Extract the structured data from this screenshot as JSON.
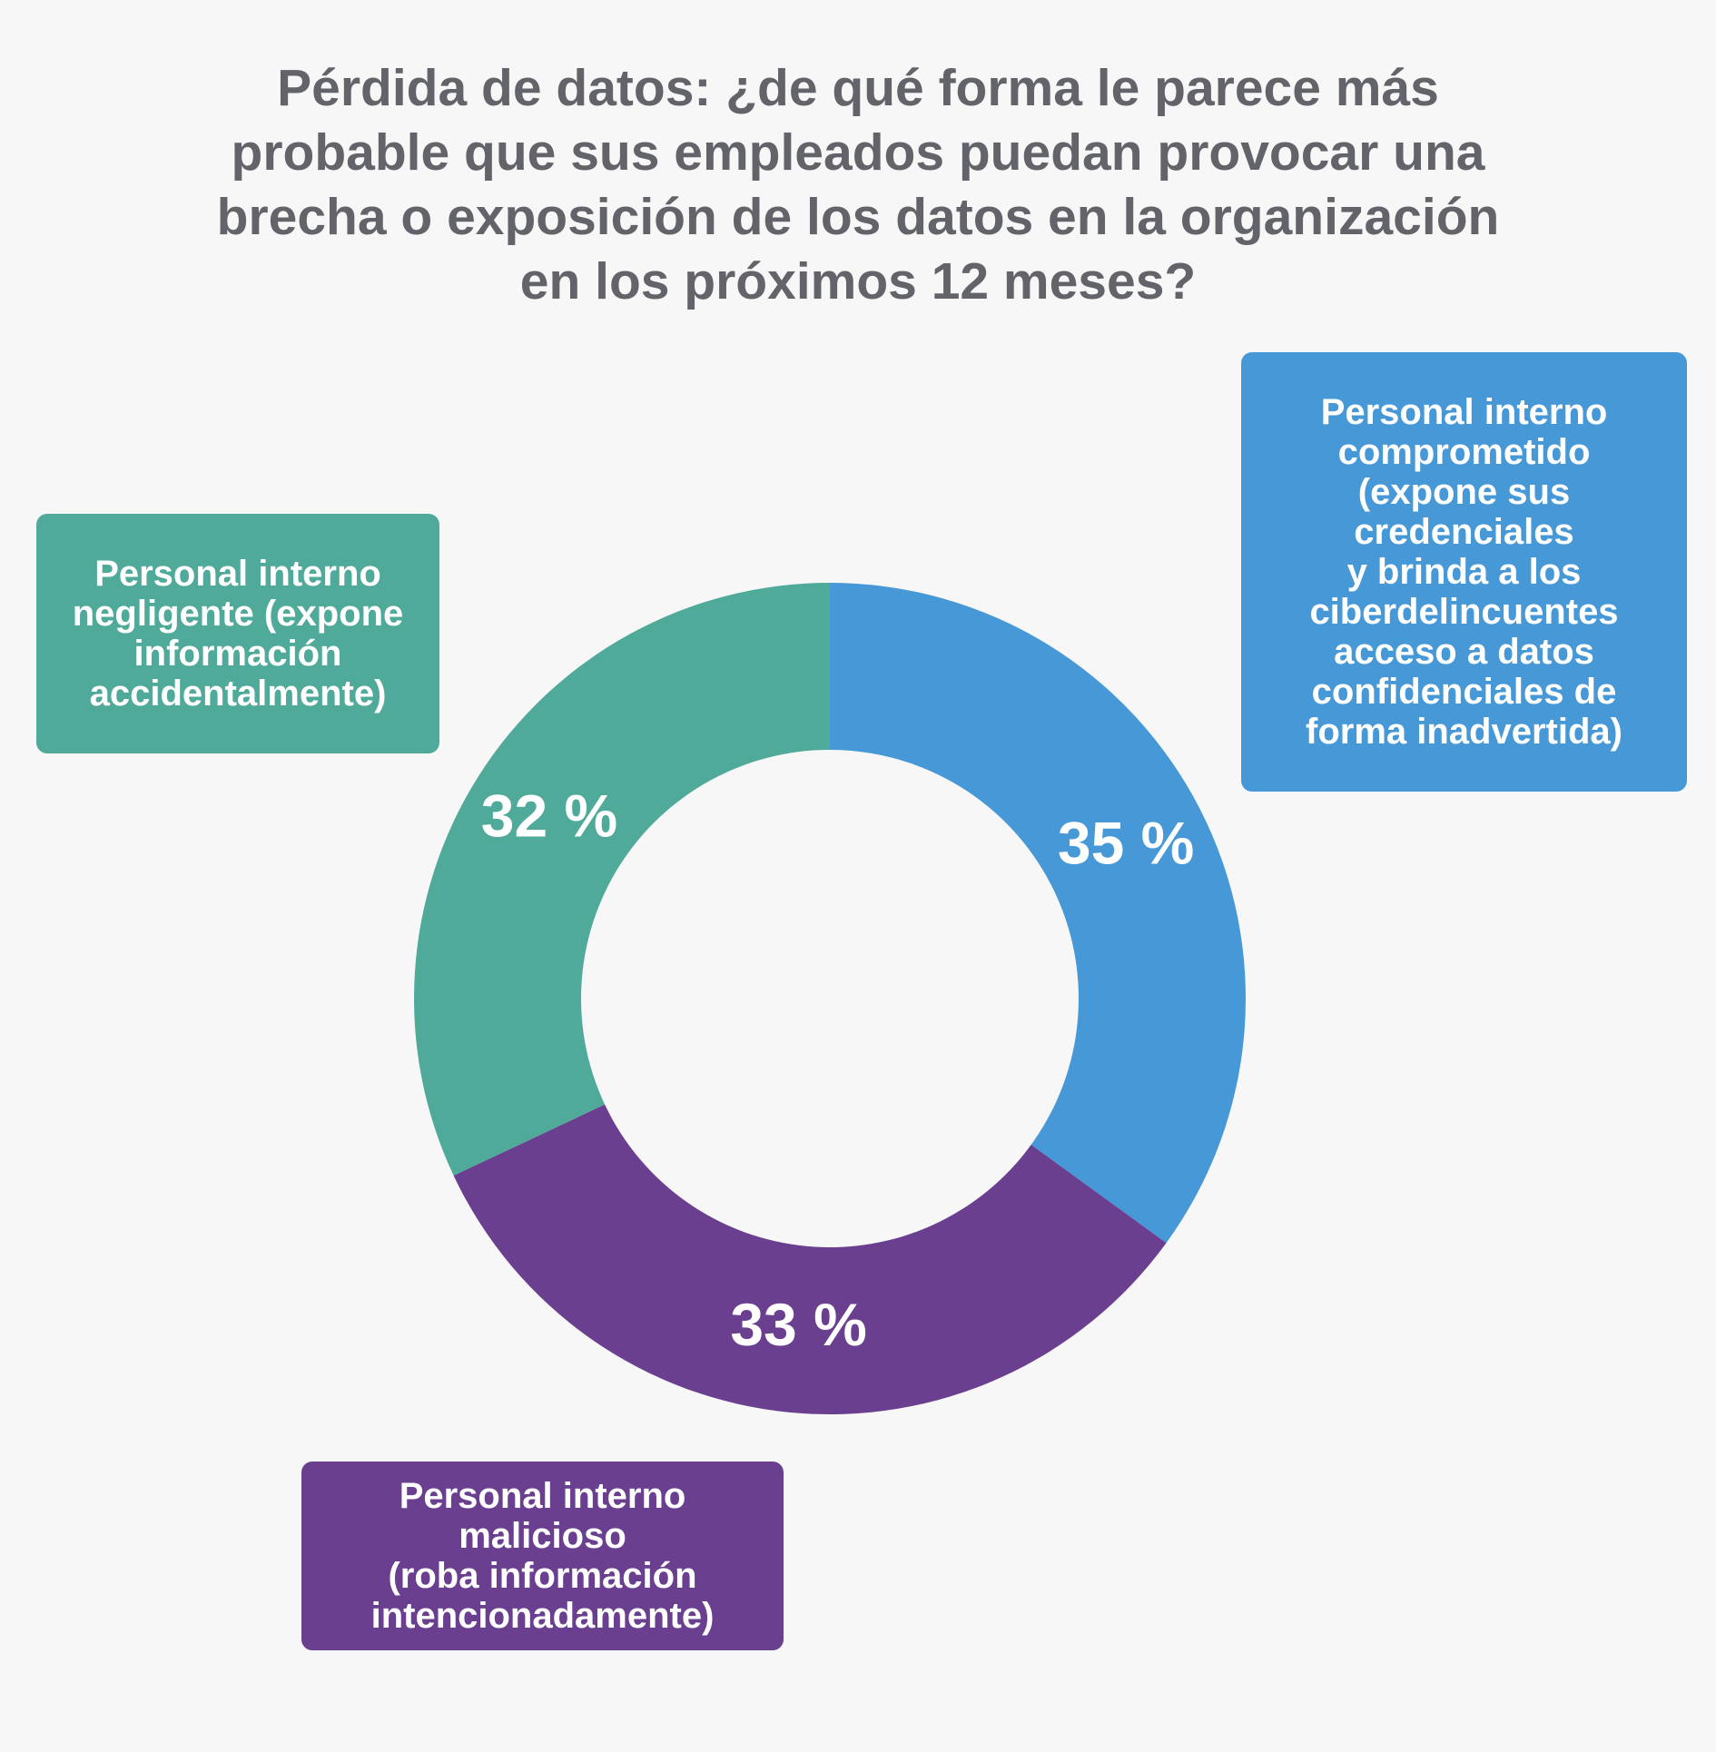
{
  "title": "Pérdida de datos: ¿de qué forma le parece más\nprobable que sus empleados puedan provocar una\nbrecha o exposición de los datos en la organización\nen los próximos 12 meses?",
  "chart_data": {
    "type": "pie",
    "donut": true,
    "title": "Pérdida de datos: ¿de qué forma le parece más probable que sus empleados puedan provocar una brecha o exposición de los datos en la organización en los próximos 12 meses?",
    "slices": [
      {
        "key": "comprometido",
        "label": "Personal interno\ncomprometido\n(expone sus\ncredenciales\ny brinda a los\nciberdelincuentes\nacceso a datos\nconfidenciales de\nforma inadvertida)",
        "value": 35,
        "display": "35 %",
        "color": "#4698d6"
      },
      {
        "key": "malicioso",
        "label": "Personal interno\nmalicioso\n(roba información\nintencionadamente)",
        "value": 33,
        "display": "33 %",
        "color": "#6b3f8f"
      },
      {
        "key": "negligente",
        "label": "Personal interno\nnegligente (expone\ninformación\naccidentalmente)",
        "value": 32,
        "display": "32 %",
        "color": "#50aa9a"
      }
    ],
    "legend": "callout boxes around chart"
  }
}
